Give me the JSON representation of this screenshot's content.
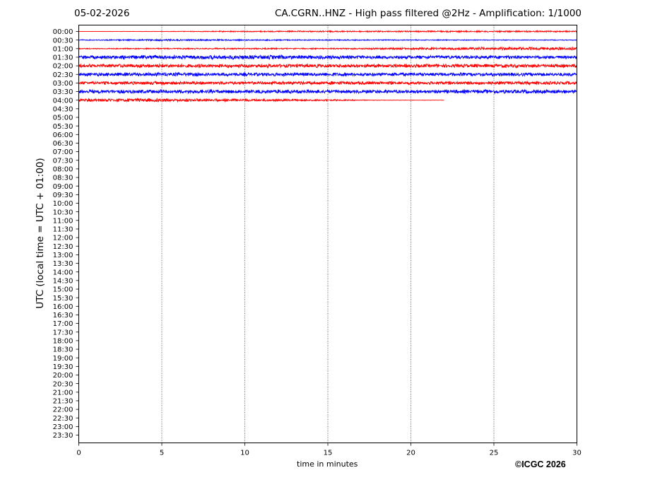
{
  "header": {
    "date": "05-02-2026",
    "title": "CA.CGRN..HNZ - High pass filtered @2Hz - Amplification: 1/1000"
  },
  "footer": {
    "copyright": "©ICGC 2026"
  },
  "chart_data": {
    "type": "line",
    "title": "CA.CGRN..HNZ - High pass filtered @2Hz - Amplification: 1/1000",
    "xlabel": "time in minutes",
    "ylabel": "UTC (local time = UTC + 01:00)",
    "xlim": [
      0,
      30
    ],
    "xticks": [
      "0",
      "5",
      "10",
      "15",
      "20",
      "25",
      "30"
    ],
    "x_gridlines": [
      5,
      10,
      15,
      20,
      25
    ],
    "grid": "vertical dotted",
    "yticks": [
      "00:00",
      "00:30",
      "01:00",
      "01:30",
      "02:00",
      "02:30",
      "03:00",
      "03:30",
      "04:00",
      "04:30",
      "05:00",
      "05:30",
      "06:00",
      "06:30",
      "07:00",
      "07:30",
      "08:00",
      "08:30",
      "09:00",
      "09:30",
      "10:00",
      "10:30",
      "11:00",
      "11:30",
      "12:00",
      "12:30",
      "13:00",
      "13:30",
      "14:00",
      "14:30",
      "15:00",
      "15:30",
      "16:00",
      "16:30",
      "17:00",
      "17:30",
      "18:00",
      "18:30",
      "19:00",
      "19:30",
      "20:00",
      "20:30",
      "21:00",
      "21:30",
      "22:00",
      "22:30",
      "23:00",
      "23:30"
    ],
    "colors": {
      "odd": "#ff0000",
      "even": "#0000ff",
      "grid": "#000000"
    },
    "series": [
      {
        "row": "00:00",
        "color": "#ff0000",
        "x_start": 0,
        "x_end": 30,
        "amplitude_profile": [
          0.15,
          0.3,
          0.8,
          0.9,
          0.9,
          1.0,
          0.9
        ]
      },
      {
        "row": "00:30",
        "color": "#0000ff",
        "x_start": 0,
        "x_end": 30,
        "amplitude_profile": [
          0.6,
          1.2,
          0.8,
          0.7,
          0.6,
          0.5,
          0.5
        ]
      },
      {
        "row": "01:00",
        "color": "#ff0000",
        "x_start": 0,
        "x_end": 30,
        "amplitude_profile": [
          0.6,
          0.8,
          0.9,
          0.8,
          1.5,
          2.0,
          2.2
        ]
      },
      {
        "row": "01:30",
        "color": "#0000ff",
        "x_start": 0,
        "x_end": 30,
        "amplitude_profile": [
          2.5,
          2.8,
          3.0,
          2.6,
          2.4,
          2.4,
          2.2
        ]
      },
      {
        "row": "02:00",
        "color": "#ff0000",
        "x_start": 0,
        "x_end": 30,
        "amplitude_profile": [
          2.4,
          2.6,
          2.4,
          2.6,
          2.4,
          2.6,
          2.4
        ]
      },
      {
        "row": "02:30",
        "color": "#0000ff",
        "x_start": 0,
        "x_end": 30,
        "amplitude_profile": [
          2.4,
          2.6,
          2.4,
          2.6,
          2.4,
          2.4,
          2.4
        ]
      },
      {
        "row": "03:00",
        "color": "#ff0000",
        "x_start": 0,
        "x_end": 30,
        "amplitude_profile": [
          2.2,
          2.4,
          2.2,
          2.4,
          2.2,
          2.4,
          2.2
        ]
      },
      {
        "row": "03:30",
        "color": "#0000ff",
        "x_start": 0,
        "x_end": 30,
        "amplitude_profile": [
          2.6,
          2.8,
          2.6,
          2.6,
          2.4,
          2.8,
          2.6
        ]
      },
      {
        "row": "04:00",
        "color": "#ff0000",
        "x_start": 0,
        "x_end": 22,
        "amplitude_profile": [
          2.0,
          2.6,
          2.2,
          1.8,
          1.2,
          0.3,
          0.2
        ]
      }
    ]
  }
}
